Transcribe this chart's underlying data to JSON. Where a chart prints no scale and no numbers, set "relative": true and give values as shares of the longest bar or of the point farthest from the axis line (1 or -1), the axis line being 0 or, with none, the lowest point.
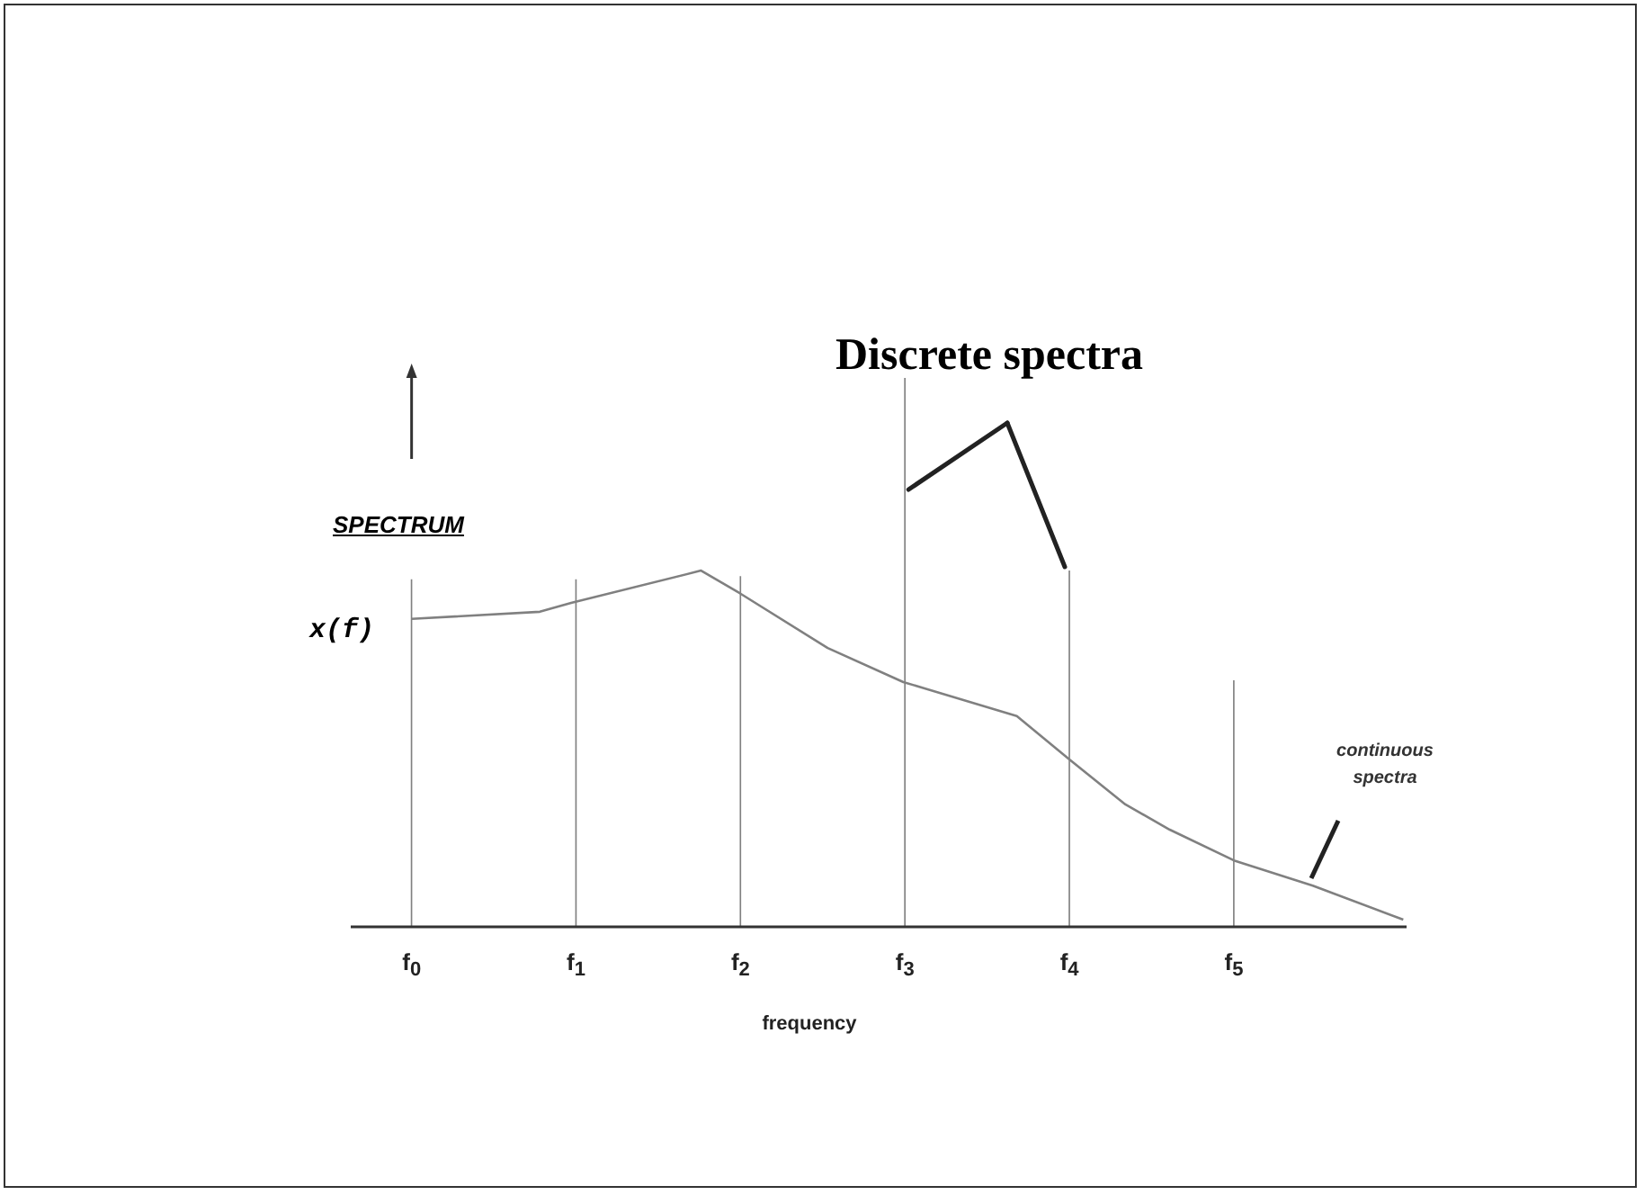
{
  "chart_data": {
    "type": "bar",
    "title": "Discrete spectra",
    "xlabel": "frequency",
    "ylabel": "x(f)",
    "annotations": [
      "SPECTRUM",
      "continuous spectra"
    ],
    "relative": true,
    "xlim": [
      -0.37,
      6.05
    ],
    "xticks": [
      {
        "value": 0,
        "label": "f$_{0}$"
      },
      {
        "value": 1,
        "label": "f$_{1}$"
      },
      {
        "value": 2,
        "label": "f$_{2}$"
      },
      {
        "value": 3,
        "label": "f$_{3}$"
      },
      {
        "value": 4,
        "label": "f$_{4}$"
      },
      {
        "value": 5,
        "label": "f$_{5}$"
      }
    ],
    "series": [
      {
        "x": [
          0,
          1,
          2,
          3,
          4,
          5
        ],
        "values": [
          0.633,
          0.633,
          0.639,
          1,
          0.649,
          0.449
        ],
        "color": "#808080"
      },
      {
        "type": "line",
        "x": [
          0,
          0.78,
          0.97,
          1.76,
          2.0,
          2.53,
          2.99,
          3.68,
          4.0,
          4.34,
          4.61,
          5.0,
          5.48,
          6.03
        ],
        "values": [
          0.561,
          0.574,
          0.59,
          0.649,
          0.607,
          0.508,
          0.446,
          0.384,
          0.305,
          0.223,
          0.177,
          0.121,
          0.075,
          0.013
        ],
        "color": "#808080"
      }
    ],
    "grid": false,
    "legend": false
  }
}
